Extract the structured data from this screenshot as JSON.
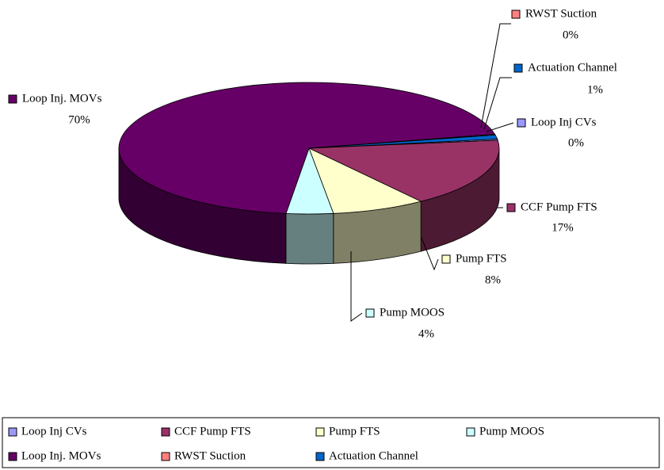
{
  "chart_data": {
    "type": "pie",
    "categories": [
      "Loop Inj CVs",
      "CCF Pump FTS",
      "Pump FTS",
      "Pump MOOS",
      "Loop Inj. MOVs",
      "RWST Suction",
      "Actuation Channel"
    ],
    "values": [
      0.3,
      17,
      8,
      4,
      70,
      0.2,
      1
    ],
    "value_labels": [
      "0%",
      "17%",
      "8%",
      "4%",
      "70%",
      "0%",
      "1%"
    ],
    "colors": [
      "#9999ff",
      "#993366",
      "#ffffcc",
      "#ccffff",
      "#660066",
      "#ff8080",
      "#0066cc"
    ]
  }
}
